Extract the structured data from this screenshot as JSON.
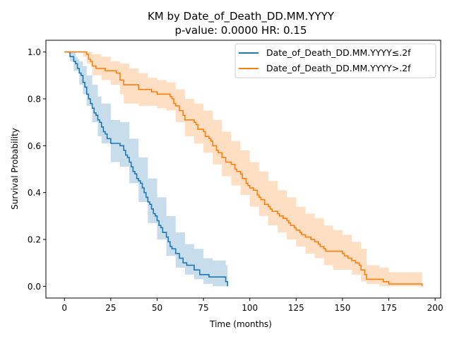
{
  "chart_data": {
    "type": "line",
    "title": "KM by Date_of_Death_DD.MM.YYYY",
    "subtitle": "p-value: 0.0000  HR: 0.15",
    "xlabel": "Time (months)",
    "ylabel": "Survival Probability",
    "xlim": [
      -10,
      203
    ],
    "ylim": [
      -0.05,
      1.05
    ],
    "xticks": [
      0,
      25,
      50,
      75,
      100,
      125,
      150,
      175,
      200
    ],
    "yticks": [
      0.0,
      0.2,
      0.4,
      0.6,
      0.8,
      1.0
    ],
    "xtick_labels": [
      "0",
      "25",
      "50",
      "75",
      "100",
      "125",
      "150",
      "175",
      "200"
    ],
    "ytick_labels": [
      "0.0",
      "0.2",
      "0.4",
      "0.6",
      "0.8",
      "1.0"
    ],
    "grid": false,
    "legend_position": "top-right",
    "series": [
      {
        "name": "Date_of_Death_DD.MM.YYYY≤.2f",
        "color": "#1f77b4",
        "band_color": "#1f77b4",
        "points": [
          [
            0,
            1.0
          ],
          [
            3,
            0.98
          ],
          [
            5,
            0.96
          ],
          [
            6,
            0.95
          ],
          [
            7,
            0.93
          ],
          [
            8,
            0.91
          ],
          [
            9,
            0.9
          ],
          [
            10,
            0.87
          ],
          [
            11,
            0.85
          ],
          [
            12,
            0.82
          ],
          [
            13,
            0.8
          ],
          [
            14,
            0.78
          ],
          [
            15,
            0.76
          ],
          [
            16,
            0.74
          ],
          [
            17,
            0.73
          ],
          [
            18,
            0.71
          ],
          [
            19,
            0.7
          ],
          [
            20,
            0.68
          ],
          [
            21,
            0.66
          ],
          [
            22,
            0.65
          ],
          [
            23,
            0.63
          ],
          [
            25,
            0.61
          ],
          [
            30,
            0.6
          ],
          [
            32,
            0.58
          ],
          [
            33,
            0.56
          ],
          [
            34,
            0.55
          ],
          [
            35,
            0.53
          ],
          [
            36,
            0.51
          ],
          [
            37,
            0.49
          ],
          [
            38,
            0.48
          ],
          [
            39,
            0.46
          ],
          [
            40,
            0.45
          ],
          [
            41,
            0.44
          ],
          [
            42,
            0.42
          ],
          [
            43,
            0.4
          ],
          [
            44,
            0.38
          ],
          [
            45,
            0.36
          ],
          [
            46,
            0.35
          ],
          [
            47,
            0.33
          ],
          [
            48,
            0.31
          ],
          [
            49,
            0.3
          ],
          [
            50,
            0.28
          ],
          [
            51,
            0.26
          ],
          [
            52,
            0.25
          ],
          [
            53,
            0.23
          ],
          [
            55,
            0.21
          ],
          [
            56,
            0.19
          ],
          [
            57,
            0.17
          ],
          [
            58,
            0.16
          ],
          [
            60,
            0.14
          ],
          [
            62,
            0.12
          ],
          [
            64,
            0.1
          ],
          [
            66,
            0.09
          ],
          [
            70,
            0.07
          ],
          [
            73,
            0.05
          ],
          [
            78,
            0.04
          ],
          [
            87,
            0.02
          ],
          [
            88,
            0.0
          ]
        ],
        "upper": [
          [
            0,
            1.0
          ],
          [
            5,
            1.0
          ],
          [
            6,
            0.98
          ],
          [
            7,
            0.97
          ],
          [
            8,
            0.96
          ],
          [
            10,
            0.94
          ],
          [
            12,
            0.9
          ],
          [
            15,
            0.86
          ],
          [
            18,
            0.81
          ],
          [
            20,
            0.78
          ],
          [
            25,
            0.71
          ],
          [
            30,
            0.7
          ],
          [
            35,
            0.63
          ],
          [
            40,
            0.55
          ],
          [
            45,
            0.46
          ],
          [
            50,
            0.38
          ],
          [
            55,
            0.3
          ],
          [
            60,
            0.23
          ],
          [
            65,
            0.18
          ],
          [
            70,
            0.16
          ],
          [
            75,
            0.12
          ],
          [
            80,
            0.11
          ],
          [
            87,
            0.09
          ],
          [
            88,
            0.05
          ]
        ],
        "lower": [
          [
            0,
            1.0
          ],
          [
            3,
            0.96
          ],
          [
            5,
            0.92
          ],
          [
            8,
            0.86
          ],
          [
            10,
            0.82
          ],
          [
            12,
            0.77
          ],
          [
            15,
            0.7
          ],
          [
            18,
            0.64
          ],
          [
            20,
            0.61
          ],
          [
            25,
            0.53
          ],
          [
            30,
            0.51
          ],
          [
            35,
            0.44
          ],
          [
            40,
            0.36
          ],
          [
            45,
            0.27
          ],
          [
            50,
            0.2
          ],
          [
            55,
            0.13
          ],
          [
            60,
            0.08
          ],
          [
            65,
            0.05
          ],
          [
            70,
            0.03
          ],
          [
            75,
            0.01
          ],
          [
            80,
            0.0
          ],
          [
            88,
            0.0
          ]
        ]
      },
      {
        "name": "Date_of_Death_DD.MM.YYYY>.2f",
        "color": "#ff7f0e",
        "band_color": "#ff7f0e",
        "points": [
          [
            0,
            1.0
          ],
          [
            10,
            1.0
          ],
          [
            12,
            0.99
          ],
          [
            13,
            0.97
          ],
          [
            14,
            0.96
          ],
          [
            15,
            0.94
          ],
          [
            17,
            0.93
          ],
          [
            20,
            0.93
          ],
          [
            22,
            0.92
          ],
          [
            25,
            0.92
          ],
          [
            28,
            0.91
          ],
          [
            30,
            0.89
          ],
          [
            30,
            0.88
          ],
          [
            32,
            0.86
          ],
          [
            38,
            0.86
          ],
          [
            40,
            0.84
          ],
          [
            45,
            0.84
          ],
          [
            47,
            0.83
          ],
          [
            50,
            0.82
          ],
          [
            55,
            0.82
          ],
          [
            57,
            0.81
          ],
          [
            58,
            0.8
          ],
          [
            59,
            0.78
          ],
          [
            60,
            0.77
          ],
          [
            62,
            0.75
          ],
          [
            64,
            0.73
          ],
          [
            65,
            0.71
          ],
          [
            70,
            0.7
          ],
          [
            71,
            0.69
          ],
          [
            72,
            0.67
          ],
          [
            75,
            0.66
          ],
          [
            76,
            0.64
          ],
          [
            78,
            0.63
          ],
          [
            79,
            0.62
          ],
          [
            80,
            0.6
          ],
          [
            82,
            0.58
          ],
          [
            83,
            0.57
          ],
          [
            85,
            0.55
          ],
          [
            87,
            0.53
          ],
          [
            90,
            0.52
          ],
          [
            92,
            0.5
          ],
          [
            93,
            0.49
          ],
          [
            95,
            0.48
          ],
          [
            96,
            0.46
          ],
          [
            98,
            0.44
          ],
          [
            99,
            0.43
          ],
          [
            100,
            0.42
          ],
          [
            102,
            0.41
          ],
          [
            104,
            0.39
          ],
          [
            105,
            0.38
          ],
          [
            106,
            0.37
          ],
          [
            108,
            0.35
          ],
          [
            110,
            0.34
          ],
          [
            111,
            0.33
          ],
          [
            112,
            0.32
          ],
          [
            115,
            0.31
          ],
          [
            116,
            0.3
          ],
          [
            118,
            0.29
          ],
          [
            120,
            0.28
          ],
          [
            121,
            0.27
          ],
          [
            122,
            0.26
          ],
          [
            124,
            0.25
          ],
          [
            125,
            0.24
          ],
          [
            127,
            0.23
          ],
          [
            128,
            0.22
          ],
          [
            130,
            0.21
          ],
          [
            133,
            0.2
          ],
          [
            135,
            0.19
          ],
          [
            137,
            0.18
          ],
          [
            138,
            0.17
          ],
          [
            140,
            0.16
          ],
          [
            141,
            0.15
          ],
          [
            150,
            0.14
          ],
          [
            151,
            0.13
          ],
          [
            153,
            0.12
          ],
          [
            155,
            0.11
          ],
          [
            157,
            0.1
          ],
          [
            159,
            0.09
          ],
          [
            160,
            0.07
          ],
          [
            162,
            0.05
          ],
          [
            163,
            0.03
          ],
          [
            172,
            0.02
          ],
          [
            175,
            0.01
          ],
          [
            193,
            0.01
          ],
          [
            193,
            0.0
          ]
        ],
        "upper": [
          [
            0,
            1.0
          ],
          [
            10,
            1.0
          ],
          [
            12,
            1.0
          ],
          [
            15,
            0.99
          ],
          [
            20,
            0.98
          ],
          [
            25,
            0.96
          ],
          [
            30,
            0.95
          ],
          [
            35,
            0.93
          ],
          [
            40,
            0.91
          ],
          [
            45,
            0.89
          ],
          [
            50,
            0.88
          ],
          [
            55,
            0.87
          ],
          [
            60,
            0.84
          ],
          [
            65,
            0.8
          ],
          [
            70,
            0.78
          ],
          [
            75,
            0.75
          ],
          [
            80,
            0.71
          ],
          [
            85,
            0.66
          ],
          [
            90,
            0.62
          ],
          [
            95,
            0.58
          ],
          [
            100,
            0.53
          ],
          [
            105,
            0.49
          ],
          [
            110,
            0.45
          ],
          [
            115,
            0.41
          ],
          [
            120,
            0.38
          ],
          [
            125,
            0.34
          ],
          [
            130,
            0.31
          ],
          [
            135,
            0.29
          ],
          [
            140,
            0.26
          ],
          [
            145,
            0.24
          ],
          [
            150,
            0.22
          ],
          [
            155,
            0.19
          ],
          [
            160,
            0.16
          ],
          [
            163,
            0.09
          ],
          [
            170,
            0.08
          ],
          [
            175,
            0.06
          ],
          [
            193,
            0.06
          ],
          [
            193,
            0.05
          ]
        ],
        "lower": [
          [
            0,
            1.0
          ],
          [
            10,
            0.98
          ],
          [
            12,
            0.95
          ],
          [
            15,
            0.9
          ],
          [
            20,
            0.88
          ],
          [
            25,
            0.86
          ],
          [
            30,
            0.82
          ],
          [
            32,
            0.78
          ],
          [
            40,
            0.77
          ],
          [
            50,
            0.76
          ],
          [
            55,
            0.75
          ],
          [
            60,
            0.7
          ],
          [
            65,
            0.64
          ],
          [
            70,
            0.61
          ],
          [
            75,
            0.57
          ],
          [
            80,
            0.52
          ],
          [
            85,
            0.47
          ],
          [
            90,
            0.43
          ],
          [
            95,
            0.39
          ],
          [
            100,
            0.34
          ],
          [
            105,
            0.3
          ],
          [
            110,
            0.26
          ],
          [
            115,
            0.23
          ],
          [
            120,
            0.2
          ],
          [
            125,
            0.17
          ],
          [
            130,
            0.14
          ],
          [
            135,
            0.12
          ],
          [
            140,
            0.09
          ],
          [
            145,
            0.07
          ],
          [
            150,
            0.07
          ],
          [
            155,
            0.05
          ],
          [
            160,
            0.02
          ],
          [
            163,
            0.01
          ],
          [
            170,
            0.0
          ],
          [
            193,
            0.0
          ]
        ]
      }
    ]
  }
}
